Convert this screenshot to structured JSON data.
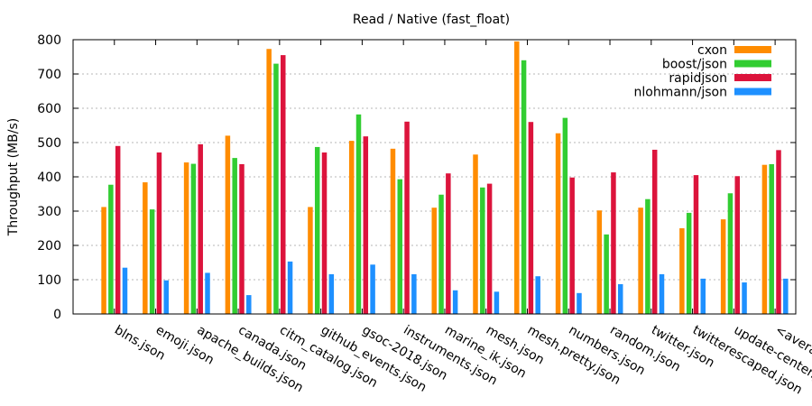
{
  "chart_data": {
    "type": "bar",
    "title": "Read / Native (fast_float)",
    "xlabel": "",
    "ylabel": "Throughput (MB/s)",
    "ylim": [
      0,
      800
    ],
    "yticks": [
      0,
      100,
      200,
      300,
      400,
      500,
      600,
      700,
      800
    ],
    "grid": true,
    "legend_position": "top-right",
    "categories": [
      "blns.json",
      "emoji.json",
      "apache_builds.json",
      "canada.json",
      "citm_catalog.json",
      "github_events.json",
      "gsoc-2018.json",
      "instruments.json",
      "marine_ik.json",
      "mesh.json",
      "mesh.pretty.json",
      "numbers.json",
      "random.json",
      "twitter.json",
      "twitterescaped.json",
      "update-center.json",
      "<average>"
    ],
    "series": [
      {
        "name": "cxon",
        "color": "#ff8c00",
        "values": [
          312,
          384,
          442,
          520,
          773,
          312,
          505,
          482,
          310,
          465,
          795,
          527,
          302,
          310,
          250,
          276,
          435
        ]
      },
      {
        "name": "boost/json",
        "color": "#32cd32",
        "values": [
          377,
          305,
          438,
          455,
          730,
          487,
          582,
          393,
          348,
          369,
          740,
          572,
          232,
          335,
          295,
          352,
          437
        ]
      },
      {
        "name": "rapidjson",
        "color": "#dc143c",
        "values": [
          490,
          471,
          495,
          437,
          755,
          471,
          518,
          561,
          410,
          380,
          560,
          398,
          413,
          479,
          405,
          402,
          478
        ]
      },
      {
        "name": "nlohmann/json",
        "color": "#1e90ff",
        "values": [
          135,
          98,
          120,
          55,
          153,
          116,
          144,
          116,
          69,
          65,
          110,
          61,
          87,
          116,
          103,
          92,
          103
        ]
      }
    ]
  }
}
